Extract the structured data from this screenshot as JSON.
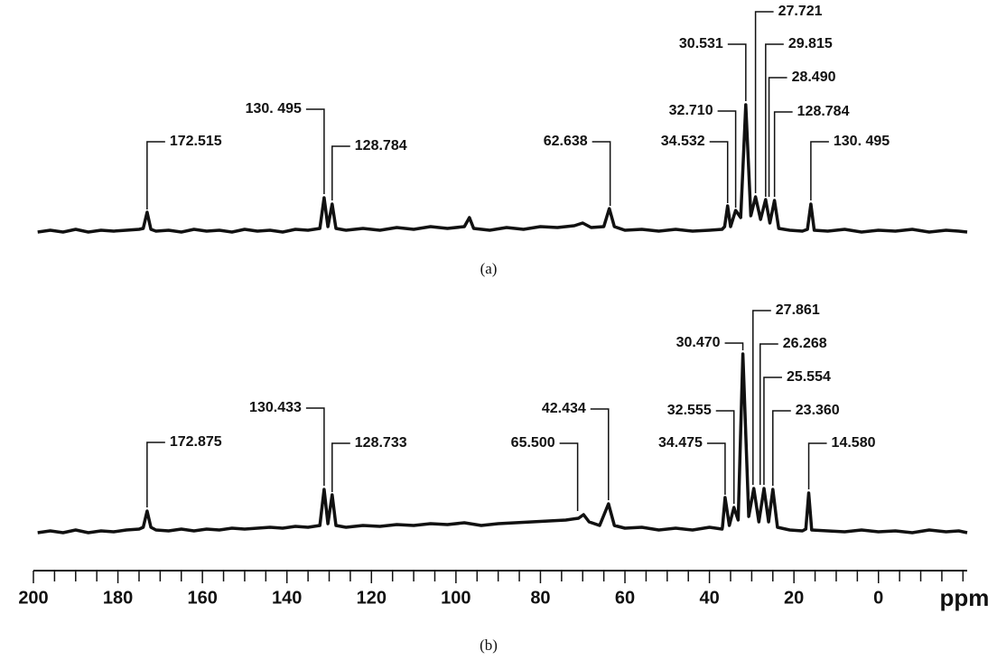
{
  "chart_data": [
    {
      "type": "line",
      "caption": "(a)",
      "color": "#111111",
      "xlim": [
        200,
        -21
      ],
      "ylim": [
        0,
        80
      ],
      "x": [
        199,
        196,
        193,
        190,
        187,
        184,
        181,
        178,
        175,
        174,
        173.1,
        172.2,
        171,
        168,
        165,
        162,
        159,
        156,
        153,
        150,
        147,
        144,
        141,
        138,
        135,
        132.2,
        131.2,
        130.3,
        129.3,
        128.4,
        126,
        122,
        118,
        114,
        110,
        106,
        102,
        98,
        96.8,
        95.8,
        92,
        88,
        84,
        80,
        76,
        72,
        70,
        68,
        65,
        63.7,
        62.5,
        60,
        56,
        52,
        48,
        44,
        40,
        37,
        36.4,
        35.7,
        35,
        33.8,
        32.6,
        31.4,
        30.2,
        29.1,
        27.9,
        26.7,
        25.7,
        24.6,
        23.6,
        21,
        18,
        16.8,
        16.0,
        15.2,
        12,
        8,
        4,
        0,
        -4,
        -8,
        -12,
        -16,
        -19,
        -21
      ],
      "values": [
        0,
        1,
        0,
        1.5,
        0,
        1,
        0.5,
        1,
        1.5,
        2,
        11,
        1.5,
        0.5,
        1,
        0,
        1.5,
        0.5,
        1,
        0,
        1.5,
        0.5,
        1,
        0,
        1.5,
        1,
        2,
        19,
        3,
        15.5,
        2,
        1,
        2,
        1,
        2.5,
        1.5,
        3,
        2,
        3,
        8,
        2,
        1,
        2.5,
        1.5,
        3,
        2.5,
        3.5,
        5,
        2.5,
        3,
        13,
        3,
        1,
        1.5,
        0.5,
        1.5,
        0.5,
        1,
        1.5,
        3,
        14.5,
        3,
        12,
        8,
        70.5,
        9,
        19.5,
        7,
        18,
        5,
        17.5,
        2,
        1,
        0.5,
        1.5,
        15.5,
        1,
        0.5,
        1.5,
        0,
        1,
        0.5,
        1.5,
        0,
        1,
        0.5,
        0
      ],
      "annotations": [
        {
          "text": "172.515",
          "x": 173.1
        },
        {
          "text": "130. 495",
          "x": 131.2
        },
        {
          "text": "128.784",
          "x": 129.3
        },
        {
          "text": "62.638",
          "x": 63.5
        },
        {
          "text": "34.532",
          "x": 35.7
        },
        {
          "text": "32.710",
          "x": 33.8
        },
        {
          "text": "30.531",
          "x": 31.4
        },
        {
          "text": "27.721",
          "x": 29.1
        },
        {
          "text": "29.815",
          "x": 26.7
        },
        {
          "text": "28.490",
          "x": 25.9
        },
        {
          "text": "128.784",
          "x": 24.6
        },
        {
          "text": "130. 495",
          "x": 16.0
        }
      ]
    },
    {
      "type": "line",
      "caption": "(b)",
      "color": "#111111",
      "xlim": [
        200,
        -21
      ],
      "ylim": [
        0,
        110
      ],
      "x": [
        199,
        196,
        193,
        190,
        187,
        184,
        181,
        178,
        175,
        174,
        173.1,
        172.2,
        171,
        168,
        165,
        162,
        159,
        156,
        153,
        150,
        147,
        144,
        141,
        138,
        135,
        132.2,
        131.2,
        130.3,
        129.3,
        128.4,
        126,
        122,
        118,
        114,
        110,
        106,
        102,
        98,
        94,
        90,
        86,
        82,
        78,
        74,
        71,
        69.8,
        68.5,
        66,
        63.9,
        62.5,
        60,
        56,
        52,
        48,
        44,
        40,
        37,
        36.9,
        36.3,
        35.3,
        34.2,
        33.2,
        32.1,
        30.7,
        29.5,
        28.3,
        27.1,
        26.0,
        25.0,
        23.9,
        21,
        18,
        17.2,
        16.5,
        15.8,
        12,
        8,
        4,
        0,
        -4,
        -8,
        -12,
        -16,
        -19,
        -21
      ],
      "values": [
        0,
        1,
        0,
        1.5,
        0,
        1,
        0.5,
        1.5,
        2,
        3,
        12,
        3,
        1.5,
        1,
        2,
        1,
        2,
        1.5,
        2.5,
        2,
        2.5,
        3,
        2.5,
        3.5,
        3,
        4,
        24,
        5,
        21,
        4,
        3,
        4,
        3.5,
        4.5,
        4,
        5,
        4.5,
        5.5,
        4,
        5,
        5.5,
        6,
        6.5,
        7,
        8,
        10,
        6,
        4,
        16,
        4,
        2.5,
        3,
        1.5,
        2.5,
        1.5,
        3,
        2,
        3.5,
        19.5,
        4,
        14,
        7,
        99,
        9,
        24.5,
        6,
        24.5,
        6,
        24,
        3,
        1.5,
        1,
        2,
        22,
        1.5,
        1,
        0.5,
        1.5,
        0.5,
        1,
        0,
        1.5,
        0.5,
        1,
        0
      ],
      "annotations": [
        {
          "text": "172.875",
          "x": 173.1
        },
        {
          "text": "130.433",
          "x": 131.2
        },
        {
          "text": "128.733",
          "x": 129.3
        },
        {
          "text": "65.500",
          "x": 71.2
        },
        {
          "text": "42.434",
          "x": 63.9
        },
        {
          "text": "34.475",
          "x": 36.3
        },
        {
          "text": "32.555",
          "x": 34.2
        },
        {
          "text": "30.470",
          "x": 32.1
        },
        {
          "text": "27.861",
          "x": 29.7
        },
        {
          "text": "26.268",
          "x": 28.0
        },
        {
          "text": "25.554",
          "x": 27.1
        },
        {
          "text": "23.360",
          "x": 25.0
        },
        {
          "text": "14.580",
          "x": 16.5
        }
      ],
      "xlabel": "ppm",
      "xticks": [
        200,
        180,
        160,
        140,
        120,
        100,
        80,
        60,
        40,
        20,
        0
      ],
      "xminorticks": [
        195,
        190,
        185,
        175,
        170,
        165,
        155,
        150,
        145,
        135,
        130,
        125,
        115,
        110,
        105,
        95,
        90,
        85,
        75,
        70,
        65,
        55,
        50,
        45,
        35,
        30,
        25,
        15,
        10,
        5,
        -5,
        -10,
        -15,
        -20
      ]
    }
  ]
}
